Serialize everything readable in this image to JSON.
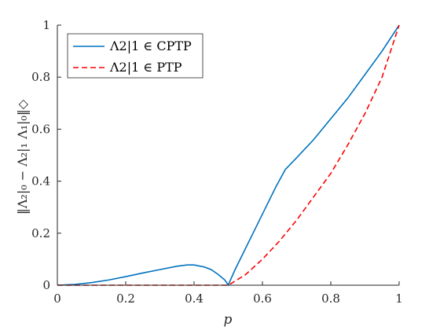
{
  "chart_data": {
    "type": "line",
    "xlabel": "p",
    "ylabel": "‖Λ₂|₀ − Λ₂|₁ Λ₁|₀‖◇",
    "xlim": [
      0,
      1
    ],
    "ylim": [
      0,
      1
    ],
    "x_ticks": [
      "0",
      "0.2",
      "0.4",
      "0.6",
      "0.8",
      "1"
    ],
    "y_ticks": [
      "0",
      "0.2",
      "0.4",
      "0.6",
      "0.8",
      "1"
    ],
    "grid": false,
    "legend": "top-left",
    "series": [
      {
        "name": "Λ2|1 ∈ CPTP",
        "color": "#0072BD",
        "style": "solid",
        "x": [
          0,
          0.05,
          0.1,
          0.15,
          0.2,
          0.25,
          0.3,
          0.35,
          0.38,
          0.4,
          0.43,
          0.45,
          0.47,
          0.49,
          0.5,
          0.52,
          0.55,
          0.58,
          0.61,
          0.64,
          0.667,
          0.7,
          0.75,
          0.8,
          0.85,
          0.9,
          0.95,
          1.0
        ],
        "y": [
          0,
          0.003,
          0.01,
          0.02,
          0.033,
          0.047,
          0.06,
          0.073,
          0.078,
          0.078,
          0.07,
          0.06,
          0.042,
          0.02,
          0.001,
          0.06,
          0.14,
          0.22,
          0.3,
          0.38,
          0.445,
          0.49,
          0.56,
          0.64,
          0.72,
          0.81,
          0.9,
          1.0
        ]
      },
      {
        "name": "Λ2|1 ∈ PTP",
        "color": "#FF0000",
        "style": "dashed",
        "x": [
          0,
          0.5,
          0.55,
          0.6,
          0.65,
          0.7,
          0.75,
          0.8,
          0.85,
          0.9,
          0.95,
          1.0
        ],
        "y": [
          0,
          0,
          0.04,
          0.1,
          0.17,
          0.25,
          0.34,
          0.43,
          0.54,
          0.66,
          0.8,
          1.0
        ]
      }
    ]
  }
}
